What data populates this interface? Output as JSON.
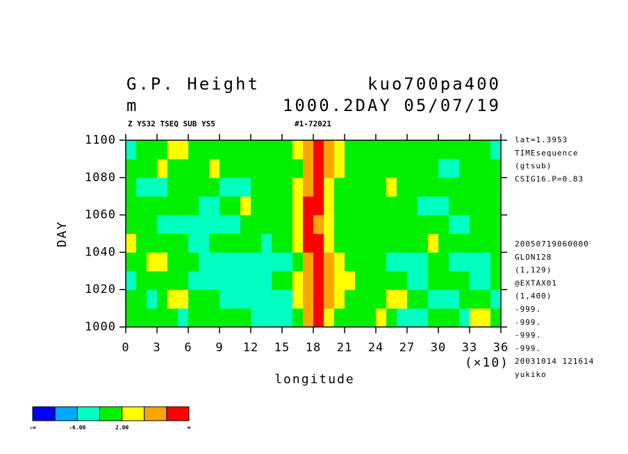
{
  "chart_data": {
    "type": "heatmap",
    "title": "G.P. Height",
    "experiment": "kuo700pa400",
    "units": "m",
    "time_label": "1000.2DAY 05/07/19",
    "subtitle": "Z YS32 TSEQ SUB YS5",
    "run_id": "#1-72021",
    "xlabel": "longitude",
    "xscale_label": "(×10)",
    "ylabel": "DAY",
    "xlim": [
      0,
      36
    ],
    "ylim": [
      1000,
      1100
    ],
    "xticks": [
      0,
      3,
      6,
      9,
      12,
      15,
      18,
      21,
      24,
      27,
      30,
      33,
      36
    ],
    "yticks": [
      1000,
      1020,
      1040,
      1060,
      1080,
      1100
    ],
    "xbins": [
      0,
      1,
      2,
      3,
      4,
      5,
      6,
      7,
      8,
      9,
      10,
      11,
      12,
      13,
      14,
      15,
      16,
      17,
      18,
      19,
      20,
      21,
      22,
      23,
      24,
      25,
      26,
      27,
      28,
      29,
      30,
      31,
      32,
      33,
      34,
      35,
      36
    ],
    "ybins": [
      1000,
      1010,
      1020,
      1030,
      1040,
      1050,
      1060,
      1070,
      1080,
      1090,
      1100
    ],
    "z": [
      [
        0,
        0,
        0,
        0,
        0,
        -3,
        0,
        0,
        0,
        0,
        0,
        0,
        -3,
        -3,
        -3,
        -3,
        0,
        8,
        12,
        4,
        0,
        0,
        0,
        0,
        3,
        0,
        -3,
        -3,
        -3,
        0,
        0,
        0,
        -3,
        3,
        3,
        0
      ],
      [
        0,
        0,
        -3,
        0,
        3,
        3,
        0,
        0,
        0,
        -3,
        -3,
        -3,
        -3,
        -3,
        -3,
        -3,
        3,
        8,
        12,
        8,
        3,
        0,
        0,
        0,
        0,
        3,
        3,
        0,
        0,
        -3,
        -3,
        -3,
        0,
        0,
        0,
        -3
      ],
      [
        -3,
        0,
        0,
        0,
        0,
        0,
        -3,
        -3,
        -3,
        -3,
        -3,
        -3,
        -3,
        -3,
        0,
        0,
        3,
        8,
        12,
        8,
        3,
        3,
        0,
        0,
        0,
        0,
        0,
        -3,
        -3,
        0,
        0,
        0,
        0,
        -3,
        -3,
        0
      ],
      [
        0,
        0,
        3,
        3,
        0,
        0,
        0,
        -3,
        -3,
        -3,
        -3,
        -3,
        -3,
        -3,
        -3,
        -3,
        0,
        8,
        12,
        8,
        3,
        0,
        0,
        0,
        0,
        -3,
        -3,
        -3,
        -3,
        0,
        0,
        -3,
        -3,
        -3,
        -3,
        0
      ],
      [
        3,
        0,
        0,
        0,
        0,
        0,
        -3,
        -3,
        0,
        0,
        0,
        0,
        0,
        -3,
        0,
        0,
        3,
        12,
        12,
        3,
        0,
        0,
        0,
        0,
        0,
        0,
        0,
        0,
        0,
        3,
        0,
        0,
        0,
        0,
        0,
        0
      ],
      [
        0,
        0,
        0,
        -3,
        -3,
        -3,
        -3,
        -3,
        -3,
        -3,
        -3,
        0,
        0,
        0,
        0,
        0,
        3,
        12,
        8,
        3,
        0,
        0,
        0,
        0,
        0,
        0,
        0,
        0,
        0,
        0,
        0,
        -3,
        -3,
        0,
        0,
        0
      ],
      [
        0,
        0,
        0,
        0,
        0,
        0,
        0,
        -3,
        -3,
        0,
        0,
        3,
        0,
        0,
        0,
        0,
        3,
        12,
        12,
        3,
        0,
        0,
        0,
        0,
        0,
        0,
        0,
        0,
        -3,
        -3,
        -3,
        0,
        0,
        0,
        0,
        0
      ],
      [
        0,
        -3,
        -3,
        -3,
        0,
        0,
        0,
        0,
        0,
        -3,
        -3,
        -3,
        0,
        0,
        0,
        0,
        3,
        8,
        12,
        3,
        0,
        0,
        0,
        0,
        0,
        3,
        0,
        0,
        0,
        0,
        0,
        0,
        0,
        0,
        0,
        0
      ],
      [
        0,
        0,
        0,
        3,
        0,
        0,
        0,
        0,
        3,
        0,
        0,
        0,
        0,
        0,
        0,
        0,
        0,
        8,
        12,
        8,
        3,
        0,
        0,
        0,
        0,
        0,
        0,
        0,
        0,
        0,
        -3,
        -3,
        0,
        0,
        0,
        0
      ],
      [
        -3,
        0,
        0,
        0,
        3,
        3,
        0,
        0,
        0,
        0,
        0,
        0,
        0,
        0,
        0,
        0,
        3,
        8,
        12,
        8,
        3,
        0,
        0,
        0,
        0,
        0,
        0,
        0,
        0,
        0,
        0,
        0,
        0,
        0,
        0,
        -3
      ]
    ],
    "levels": [
      -10,
      -6,
      -2,
      2,
      6,
      10
    ],
    "colors": [
      "#0000ff",
      "#00a8ff",
      "#00ffc0",
      "#00f000",
      "#ffff00",
      "#ffa500",
      "#ff0000"
    ],
    "colorbar_labels": [
      "-∞",
      {
        "value": -6,
        "label": "-6.00"
      },
      {
        "value": 2,
        "label": "2.00"
      },
      "∞"
    ],
    "notes_top": [
      "lat=1.3953",
      "TIMEsequence",
      "(gtsub)",
      "CSIG16.P=0.83"
    ],
    "notes_bottom": [
      "20050719060000",
      "GLON128",
      "(1,129)",
      "@EXTAX01",
      "(1,400)",
      "-999.",
      "-999.",
      "-999.",
      "-999.",
      "20031014 121614",
      "yukiko"
    ]
  }
}
